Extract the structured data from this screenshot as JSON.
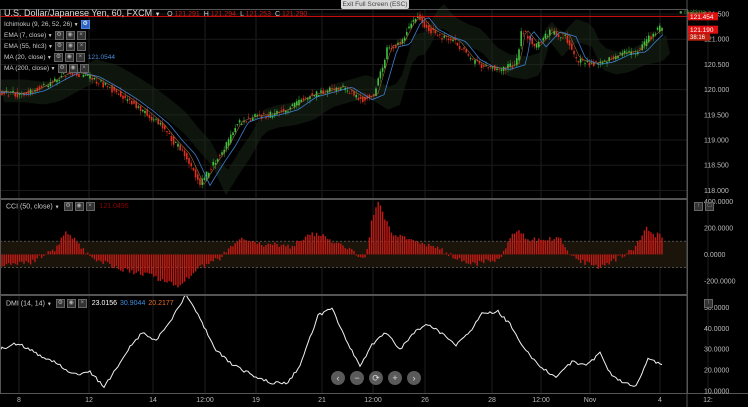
{
  "fullscreen_button": "Exit Full Screen (ESC)",
  "main": {
    "title": "U.S. Dollar/Japanese Yen, 60, FXCM",
    "ohlc": [
      {
        "k": "O",
        "v": "121.291"
      },
      {
        "k": "H",
        "v": "121.294"
      },
      {
        "k": "L",
        "v": "121.253"
      },
      {
        "k": "C",
        "v": "121.290"
      }
    ],
    "realtime": "realtime",
    "indicators": [
      {
        "name": "Ichimoku (9, 26, 52, 26)",
        "value": ""
      },
      {
        "name": "EMA (7, close)",
        "value": ""
      },
      {
        "name": "EMA (55, hlc3)",
        "value": ""
      },
      {
        "name": "MA (20, close)",
        "value": "121.0544"
      },
      {
        "name": "MA (200, close)",
        "value": ""
      }
    ],
    "price_badges": {
      "high": "121.454",
      "current": "121.190",
      "countdown": "38:16"
    },
    "y_ticks": [
      "121.500",
      "121.000",
      "120.500",
      "120.000",
      "119.500",
      "119.000",
      "118.500",
      "118.000"
    ]
  },
  "cci": {
    "title": "CCI (50, close)",
    "value": "121.0495",
    "y_ticks": [
      "400.0000",
      "200.0000",
      "0.0000",
      "-200.0000"
    ]
  },
  "dmi": {
    "title": "DMI (14, 14)",
    "values": [
      {
        "v": "23.0156",
        "color": "#ffffff"
      },
      {
        "v": "30.9044",
        "color": "#3d8fe0"
      },
      {
        "v": "20.2177",
        "color": "#e8702a"
      }
    ],
    "y_ticks": [
      "50.0000",
      "40.0000",
      "30.0000",
      "20.0000",
      "10.0000"
    ]
  },
  "x_ticks": [
    "8",
    "12",
    "14",
    "12:00",
    "19",
    "21",
    "12:00",
    "26",
    "28",
    "12:00",
    "Nov",
    "4",
    "12:"
  ],
  "nav": [
    {
      "name": "scroll-left-button",
      "glyph": "‹"
    },
    {
      "name": "zoom-out-button",
      "glyph": "−"
    },
    {
      "name": "reset-button",
      "glyph": "⟳"
    },
    {
      "name": "zoom-in-button",
      "glyph": "+"
    },
    {
      "name": "scroll-right-button",
      "glyph": "›"
    }
  ],
  "chart_data": [
    {
      "type": "candlestick",
      "ylim": [
        117.85,
        121.6
      ],
      "path": [
        [
          0,
          119.95
        ],
        [
          18,
          119.9
        ],
        [
          35,
          119.98
        ],
        [
          55,
          120.2
        ],
        [
          70,
          120.35
        ],
        [
          90,
          120.25
        ],
        [
          108,
          120.05
        ],
        [
          128,
          119.8
        ],
        [
          145,
          119.55
        ],
        [
          160,
          119.3
        ],
        [
          172,
          119.0
        ],
        [
          186,
          118.7
        ],
        [
          200,
          118.1
        ],
        [
          214,
          118.55
        ],
        [
          226,
          118.9
        ],
        [
          238,
          119.35
        ],
        [
          252,
          119.45
        ],
        [
          270,
          119.5
        ],
        [
          288,
          119.6
        ],
        [
          306,
          119.85
        ],
        [
          324,
          119.95
        ],
        [
          342,
          120.05
        ],
        [
          362,
          119.8
        ],
        [
          374,
          119.9
        ],
        [
          388,
          120.85
        ],
        [
          400,
          120.9
        ],
        [
          410,
          121.3
        ],
        [
          418,
          121.45
        ],
        [
          428,
          121.2
        ],
        [
          442,
          121.05
        ],
        [
          456,
          120.95
        ],
        [
          470,
          120.6
        ],
        [
          484,
          120.45
        ],
        [
          500,
          120.4
        ],
        [
          516,
          120.5
        ],
        [
          522,
          121.2
        ],
        [
          536,
          120.85
        ],
        [
          550,
          121.15
        ],
        [
          566,
          121.05
        ],
        [
          576,
          120.6
        ],
        [
          590,
          120.5
        ],
        [
          604,
          120.55
        ],
        [
          620,
          120.7
        ],
        [
          636,
          120.75
        ],
        [
          648,
          121.0
        ],
        [
          662,
          121.25
        ]
      ]
    },
    {
      "type": "bar",
      "ylim": [
        -300,
        420
      ],
      "path": [
        [
          0,
          -80
        ],
        [
          30,
          -60
        ],
        [
          55,
          40
        ],
        [
          66,
          180
        ],
        [
          75,
          110
        ],
        [
          90,
          -20
        ],
        [
          120,
          -110
        ],
        [
          150,
          -160
        ],
        [
          180,
          -240
        ],
        [
          200,
          -100
        ],
        [
          220,
          -30
        ],
        [
          240,
          120
        ],
        [
          262,
          80
        ],
        [
          290,
          60
        ],
        [
          315,
          160
        ],
        [
          340,
          80
        ],
        [
          365,
          -40
        ],
        [
          372,
          260
        ],
        [
          378,
          400
        ],
        [
          392,
          150
        ],
        [
          410,
          120
        ],
        [
          440,
          40
        ],
        [
          470,
          -80
        ],
        [
          500,
          -30
        ],
        [
          516,
          190
        ],
        [
          530,
          110
        ],
        [
          560,
          120
        ],
        [
          575,
          -40
        ],
        [
          600,
          -100
        ],
        [
          620,
          -20
        ],
        [
          635,
          40
        ],
        [
          645,
          210
        ],
        [
          655,
          150
        ],
        [
          665,
          140
        ]
      ]
    },
    {
      "type": "line",
      "ylim": [
        9,
        56
      ],
      "path": [
        [
          0,
          30
        ],
        [
          18,
          33
        ],
        [
          36,
          28
        ],
        [
          55,
          24
        ],
        [
          72,
          18
        ],
        [
          90,
          19
        ],
        [
          104,
          12
        ],
        [
          118,
          22
        ],
        [
          130,
          31
        ],
        [
          142,
          38
        ],
        [
          156,
          34
        ],
        [
          172,
          45
        ],
        [
          186,
          56
        ],
        [
          200,
          45
        ],
        [
          214,
          31
        ],
        [
          228,
          24
        ],
        [
          242,
          20
        ],
        [
          256,
          17
        ],
        [
          272,
          14
        ],
        [
          288,
          14
        ],
        [
          300,
          22
        ],
        [
          318,
          46
        ],
        [
          332,
          50
        ],
        [
          346,
          34
        ],
        [
          360,
          22
        ],
        [
          372,
          32
        ],
        [
          386,
          38
        ],
        [
          400,
          30
        ],
        [
          414,
          38
        ],
        [
          428,
          42
        ],
        [
          440,
          38
        ],
        [
          456,
          32
        ],
        [
          468,
          37
        ],
        [
          482,
          47
        ],
        [
          498,
          48
        ],
        [
          510,
          42
        ],
        [
          524,
          30
        ],
        [
          540,
          22
        ],
        [
          556,
          16
        ],
        [
          572,
          24
        ],
        [
          586,
          22
        ],
        [
          600,
          28
        ],
        [
          612,
          17
        ],
        [
          624,
          14
        ],
        [
          636,
          12
        ],
        [
          648,
          25
        ],
        [
          662,
          23
        ]
      ]
    }
  ]
}
